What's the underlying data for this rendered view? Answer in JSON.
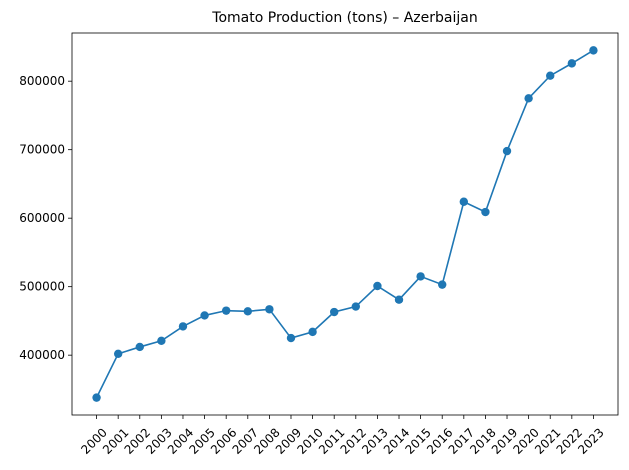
{
  "chart_data": {
    "type": "line",
    "title": "Tomato Production (tons) – Azerbaijan",
    "xlabel": "",
    "ylabel": "",
    "categories": [
      "2000",
      "2001",
      "2002",
      "2003",
      "2004",
      "2005",
      "2006",
      "2007",
      "2008",
      "2009",
      "2010",
      "2011",
      "2012",
      "2013",
      "2014",
      "2015",
      "2016",
      "2017",
      "2018",
      "2019",
      "2020",
      "2021",
      "2022",
      "2023"
    ],
    "series": [
      {
        "values": [
          338000,
          402000,
          412000,
          421000,
          442000,
          458000,
          465000,
          464000,
          467000,
          425000,
          434000,
          463000,
          471000,
          501000,
          481000,
          515000,
          503000,
          624000,
          609000,
          698000,
          775000,
          808000,
          826000,
          845000
        ],
        "color": "#1f77b4",
        "marker": "circle"
      }
    ],
    "yticks": [
      400000,
      500000,
      600000,
      700000,
      800000
    ],
    "ytick_labels": [
      "400000",
      "500000",
      "600000",
      "700000",
      "800000"
    ],
    "ylim": [
      312650,
      870350
    ],
    "grid": false,
    "legend": "none"
  }
}
